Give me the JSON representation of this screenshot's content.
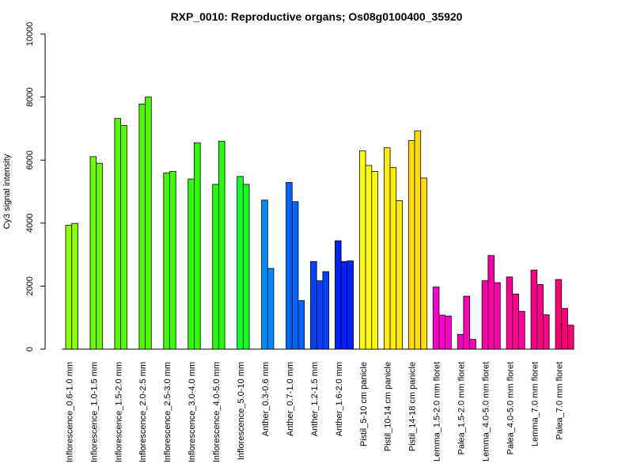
{
  "chart_data": {
    "type": "bar",
    "title": "RXP_0010: Reproductive organs; Os08g0100400_35920",
    "ylabel": "Cy3 signal intensity",
    "xlabel": "",
    "ylim": [
      0,
      10000
    ],
    "yticks": [
      0,
      2000,
      4000,
      6000,
      8000,
      10000
    ],
    "grid": false,
    "legend": "none",
    "groups": [
      {
        "label": "Inflorescence_0.6-1.0 mm",
        "color": "#8cff00",
        "values": [
          3930,
          3990
        ]
      },
      {
        "label": "Inflorescence_1.0-1.5 mm",
        "color": "#6aff00",
        "values": [
          6110,
          5900
        ]
      },
      {
        "label": "Inflorescence_1.5-2.0 mm",
        "color": "#56ff00",
        "values": [
          7320,
          7100
        ]
      },
      {
        "label": "Inflorescence_2.0-2.5 mm",
        "color": "#4cff00",
        "values": [
          7780,
          8000
        ]
      },
      {
        "label": "Inflorescence_2.5-3.0 mm",
        "color": "#3eff00",
        "values": [
          5590,
          5640
        ]
      },
      {
        "label": "Inflorescence_3.0-4.0 mm",
        "color": "#2cff00",
        "values": [
          5400,
          6550
        ]
      },
      {
        "label": "Inflorescence_4.0-5.0 mm",
        "color": "#22ff00",
        "values": [
          5230,
          6600
        ]
      },
      {
        "label": "Inflorescence_5.0-10 mm",
        "color": "#14ff22",
        "values": [
          5480,
          5230
        ]
      },
      {
        "label": "Anther_0.3-0.6 mm",
        "color": "#0088ff",
        "values": [
          4730,
          2560
        ]
      },
      {
        "label": "Anther_0.7-1.0 mm",
        "color": "#0066ff",
        "values": [
          5290,
          4680,
          1540
        ]
      },
      {
        "label": "Anther_1.2-1.5 mm",
        "color": "#0044ff",
        "values": [
          2780,
          2170,
          2460
        ]
      },
      {
        "label": "Anther_1.6-2.0 mm",
        "color": "#0022ff",
        "values": [
          3440,
          2780,
          2800
        ]
      },
      {
        "label": "Pistil_5-10 cm panicle",
        "color": "#ffff00",
        "values": [
          6290,
          5830,
          5640
        ]
      },
      {
        "label": "Pistil_10-14 cm panicle",
        "color": "#ffee00",
        "values": [
          6390,
          5760,
          4710
        ]
      },
      {
        "label": "Pistil_14-18 cm panicle",
        "color": "#ffdd00",
        "values": [
          6620,
          6930,
          5430
        ]
      },
      {
        "label": "Lemma_1.5-2.0 mm floret",
        "color": "#ff00cc",
        "values": [
          1970,
          1080,
          1050
        ]
      },
      {
        "label": "Palea_1.5-2.0 mm floret",
        "color": "#ff00bb",
        "values": [
          470,
          1680,
          310
        ]
      },
      {
        "label": "Lemma_4.0-5.0 mm floret",
        "color": "#ff00aa",
        "values": [
          2170,
          2970,
          2110
        ]
      },
      {
        "label": "Palea_4.0-5.0 mm floret",
        "color": "#ff0099",
        "values": [
          2290,
          1750,
          1200
        ]
      },
      {
        "label": "Lemma_7.0 mm floret",
        "color": "#ff0088",
        "values": [
          2510,
          2050,
          1090
        ]
      },
      {
        "label": "Palea_7.0 mm floret",
        "color": "#ff0077",
        "values": [
          2210,
          1290,
          760
        ]
      }
    ]
  }
}
